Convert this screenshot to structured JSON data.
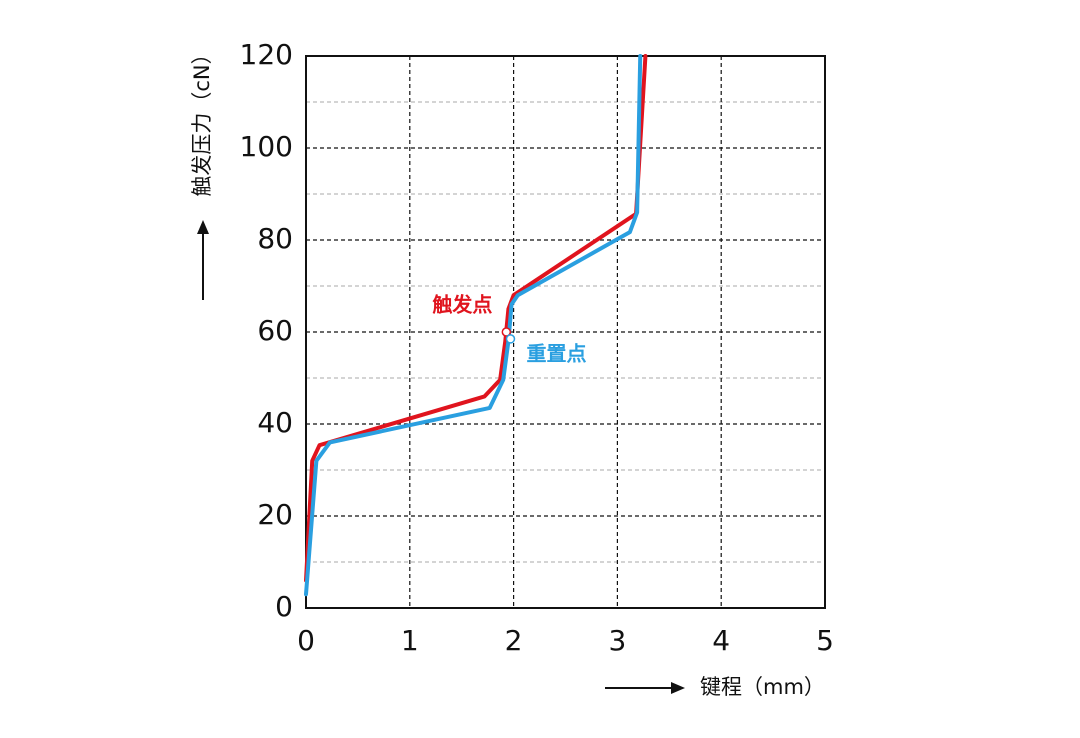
{
  "chart_data": {
    "type": "line",
    "x_label": "键程（mm）",
    "y_label": "触发压力（cN）",
    "xlim": [
      0,
      5
    ],
    "xticks": [
      0,
      1,
      2,
      3,
      4,
      5
    ],
    "ylim": [
      0,
      120
    ],
    "yticks": [
      0,
      20,
      40,
      60,
      80,
      100,
      120
    ],
    "minor_yticks": [
      10,
      30,
      50,
      70,
      90,
      110
    ],
    "grid": true,
    "series": [
      {
        "color": "#e0141e",
        "x": [
          0,
          0.06,
          0.13,
          1.72,
          1.87,
          1.92,
          1.95,
          2.0,
          3.18,
          3.27
        ],
        "values": [
          6,
          32,
          35.4,
          46,
          49.6,
          58,
          65,
          68,
          85.7,
          120
        ]
      },
      {
        "color": "#2a9fe0",
        "x": [
          0,
          0.1,
          0.23,
          1.77,
          1.9,
          1.95,
          1.98,
          2.04,
          3.12,
          3.19,
          3.22
        ],
        "values": [
          3,
          32,
          36,
          43.5,
          49.6,
          58,
          66,
          68,
          81.7,
          86,
          120
        ]
      }
    ],
    "annotations": [
      {
        "text": "触发点",
        "x": 1.93,
        "y": 60,
        "color": "#e0141e"
      },
      {
        "text": "重置点",
        "x": 1.97,
        "y": 58.5,
        "color": "#2a9fe0"
      }
    ]
  }
}
